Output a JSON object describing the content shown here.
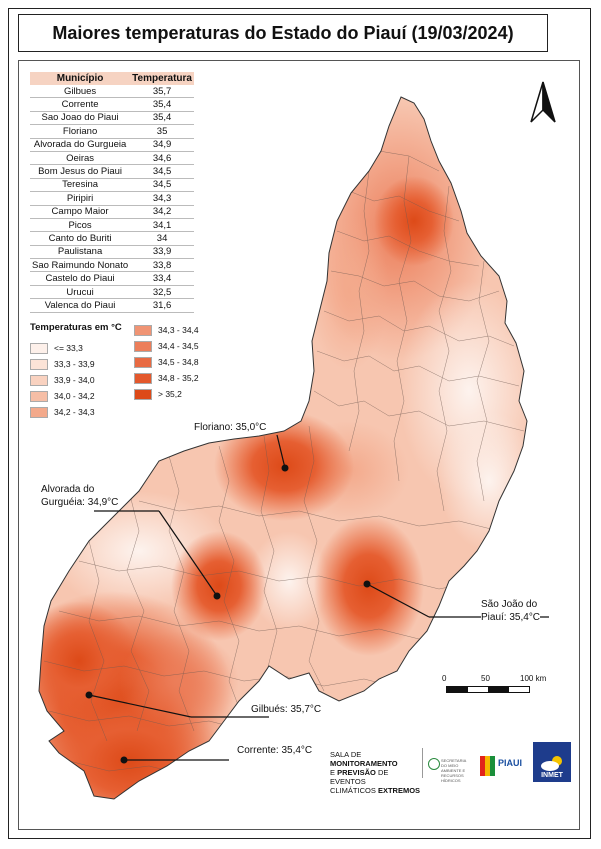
{
  "title": "Maiores temperaturas do Estado do Piauí (19/03/2024)",
  "table": {
    "headers": [
      "Município",
      "Temperatura"
    ],
    "rows": [
      [
        "Gilbues",
        "35,7"
      ],
      [
        "Corrente",
        "35,4"
      ],
      [
        "Sao Joao do Piaui",
        "35,4"
      ],
      [
        "Floriano",
        "35"
      ],
      [
        "Alvorada do Gurgueia",
        "34,9"
      ],
      [
        "Oeiras",
        "34,6"
      ],
      [
        "Bom Jesus do Piaui",
        "34,5"
      ],
      [
        "Teresina",
        "34,5"
      ],
      [
        "Piripiri",
        "34,3"
      ],
      [
        "Campo Maior",
        "34,2"
      ],
      [
        "Picos",
        "34,1"
      ],
      [
        "Canto do Buriti",
        "34"
      ],
      [
        "Paulistana",
        "33,9"
      ],
      [
        "Sao Raimundo Nonato",
        "33,8"
      ],
      [
        "Castelo do Piaui",
        "33,4"
      ],
      [
        "Urucui",
        "32,5"
      ],
      [
        "Valenca do Piaui",
        "31,6"
      ]
    ]
  },
  "legend": {
    "title": "Temperaturas em °C",
    "classes": [
      {
        "label": "<= 33,3",
        "color": "#fdf0ea"
      },
      {
        "label": "33,3 - 33,9",
        "color": "#fbe3d7"
      },
      {
        "label": "33,9 - 34,0",
        "color": "#f9d2c0"
      },
      {
        "label": "34,0 - 34,2",
        "color": "#f6bea6"
      },
      {
        "label": "34,2 - 34,3",
        "color": "#f3a98b"
      },
      {
        "label": "34,3 - 34,4",
        "color": "#f09474"
      },
      {
        "label": "34,4 - 34,5",
        "color": "#ec7e5a"
      },
      {
        "label": "34,5 - 34,8",
        "color": "#e86a42"
      },
      {
        "label": "34,8 - 35,2",
        "color": "#e3582c"
      },
      {
        "label": "> 35,2",
        "color": "#dd4a18"
      }
    ]
  },
  "labels": {
    "floriano": "Floriano: 35,0°C",
    "alvorada_1": "Alvorada do",
    "alvorada_2": "Gurguéia: 34,9°C",
    "sao_joao_1": "São João do",
    "sao_joao_2": "Piauí: 35,4°C",
    "gilbues": "Gilbués: 35,7°C",
    "corrente": "Corrente: 35,4°C"
  },
  "scale": {
    "ticks": [
      "0",
      "50",
      "100 km"
    ]
  },
  "footer": {
    "line1": "SALA DE",
    "line1b": "MONITORAMENTO",
    "line2a": "E",
    "line2b": "PREVISÃO",
    "line2c": "DE EVENTOS",
    "line3a": "CLIMÁTICOS",
    "line3b": "EXTREMOS",
    "sema": "SECRETARIA DO MEIO AMBIENTE E RECURSOS HÍDRICOS",
    "piaui": "PIAUI",
    "inmet": "INMET"
  }
}
